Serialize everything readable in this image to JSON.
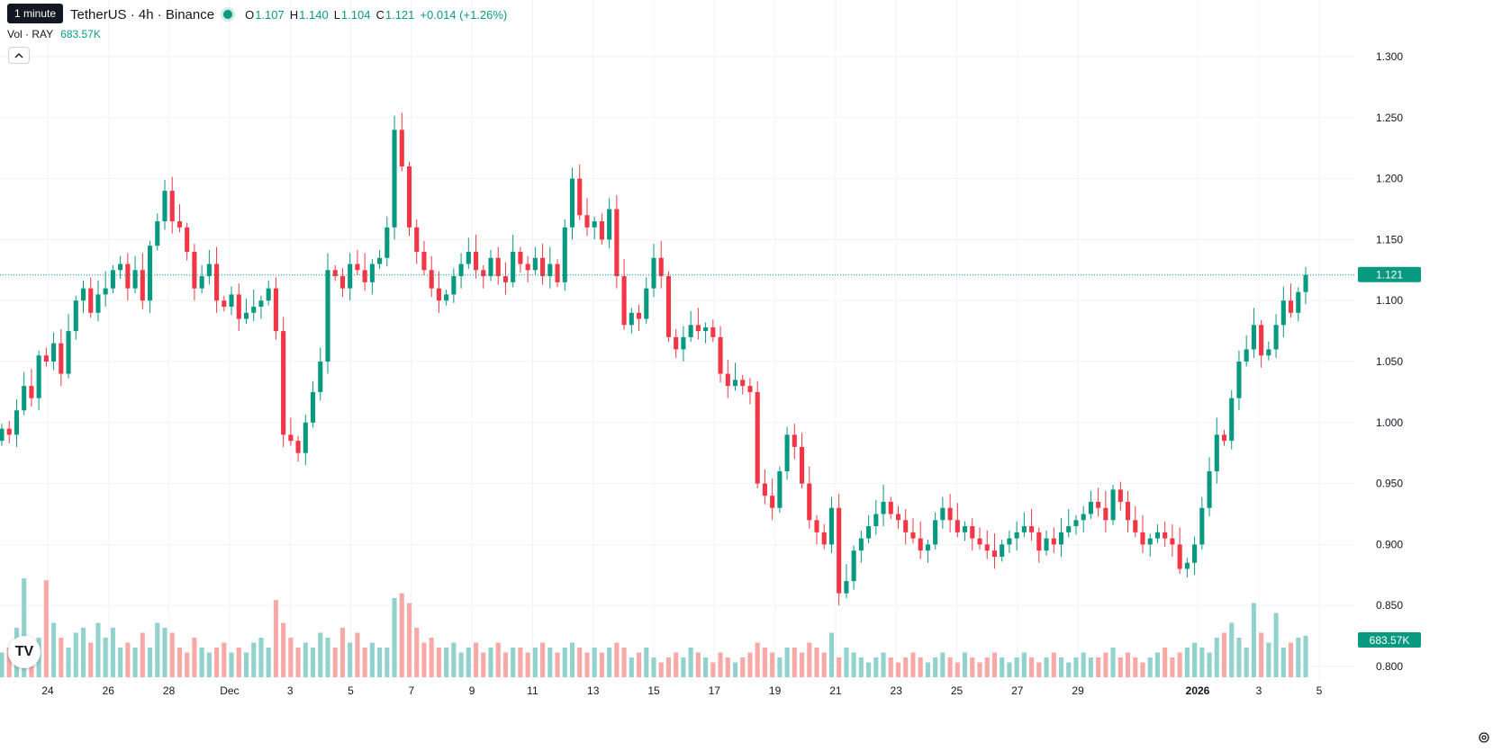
{
  "header": {
    "symbol": "TetherUS · 4h · Binance",
    "tooltip": "1 minute",
    "o_label": "O",
    "o_value": "1.107",
    "h_label": "H",
    "h_value": "1.140",
    "l_label": "L",
    "l_value": "1.104",
    "c_label": "C",
    "c_value": "1.121",
    "change": "+0.014 (+1.26%)",
    "vol_label": "Vol · RAY",
    "vol_value": "683.57K"
  },
  "logo_text": "TV",
  "icons": {
    "collapse": "chevron-up-icon",
    "settings": "gear-icon",
    "logo": "tradingview-logo-icon"
  },
  "colors": {
    "up": "#089981",
    "down": "#f23645",
    "up_vol": "#92d2cc",
    "down_vol": "#f7a9a7",
    "grid": "#f0f3fa"
  },
  "chart_data": {
    "type": "candlestick",
    "ylim": [
      0.79,
      1.31
    ],
    "y_ticks": [
      "1.300",
      "1.250",
      "1.200",
      "1.150",
      "1.100",
      "1.050",
      "1.000",
      "0.950",
      "0.900",
      "0.850",
      "0.800"
    ],
    "x_ticks": [
      "24",
      "26",
      "28",
      "Dec",
      "3",
      "5",
      "7",
      "9",
      "11",
      "13",
      "15",
      "17",
      "19",
      "21",
      "23",
      "25",
      "27",
      "29",
      "2026",
      "3",
      "5"
    ],
    "last_price": "1.121",
    "last_volume": "683.57K",
    "closes": [
      0.995,
      0.99,
      1.01,
      1.03,
      1.02,
      1.055,
      1.05,
      1.065,
      1.04,
      1.075,
      1.1,
      1.11,
      1.09,
      1.105,
      1.11,
      1.125,
      1.13,
      1.11,
      1.125,
      1.1,
      1.145,
      1.165,
      1.19,
      1.165,
      1.16,
      1.14,
      1.11,
      1.12,
      1.13,
      1.1,
      1.095,
      1.105,
      1.085,
      1.09,
      1.095,
      1.1,
      1.11,
      1.075,
      0.99,
      0.985,
      0.975,
      1.0,
      1.025,
      1.05,
      1.125,
      1.12,
      1.11,
      1.13,
      1.125,
      1.115,
      1.13,
      1.135,
      1.16,
      1.24,
      1.21,
      1.16,
      1.14,
      1.125,
      1.11,
      1.1,
      1.105,
      1.12,
      1.13,
      1.14,
      1.125,
      1.12,
      1.135,
      1.12,
      1.115,
      1.14,
      1.13,
      1.125,
      1.135,
      1.12,
      1.13,
      1.115,
      1.16,
      1.2,
      1.17,
      1.16,
      1.165,
      1.15,
      1.175,
      1.12,
      1.08,
      1.09,
      1.085,
      1.11,
      1.135,
      1.12,
      1.07,
      1.06,
      1.07,
      1.08,
      1.075,
      1.078,
      1.07,
      1.04,
      1.03,
      1.035,
      1.03,
      1.025,
      0.95,
      0.94,
      0.93,
      0.96,
      0.99,
      0.98,
      0.95,
      0.92,
      0.91,
      0.9,
      0.93,
      0.86,
      0.87,
      0.895,
      0.905,
      0.915,
      0.925,
      0.935,
      0.925,
      0.92,
      0.91,
      0.905,
      0.895,
      0.9,
      0.92,
      0.93,
      0.92,
      0.91,
      0.915,
      0.905,
      0.9,
      0.895,
      0.89,
      0.9,
      0.905,
      0.91,
      0.915,
      0.91,
      0.895,
      0.905,
      0.9,
      0.91,
      0.915,
      0.92,
      0.925,
      0.935,
      0.93,
      0.92,
      0.945,
      0.935,
      0.92,
      0.91,
      0.9,
      0.905,
      0.91,
      0.905,
      0.9,
      0.88,
      0.885,
      0.9,
      0.93,
      0.96,
      0.99,
      0.985,
      1.02,
      1.05,
      1.06,
      1.08,
      1.055,
      1.06,
      1.08,
      1.1,
      1.09,
      1.107,
      1.121
    ],
    "volume_levels": [
      0.25,
      0.3,
      0.5,
      1.0,
      0.35,
      0.4,
      0.98,
      0.55,
      0.4,
      0.3,
      0.45,
      0.5,
      0.35,
      0.55,
      0.4,
      0.5,
      0.3,
      0.35,
      0.3,
      0.45,
      0.3,
      0.55,
      0.5,
      0.45,
      0.3,
      0.25,
      0.4,
      0.3,
      0.25,
      0.3,
      0.35,
      0.25,
      0.3,
      0.25,
      0.35,
      0.4,
      0.3,
      0.78,
      0.55,
      0.4,
      0.3,
      0.35,
      0.3,
      0.45,
      0.4,
      0.3,
      0.5,
      0.35,
      0.45,
      0.3,
      0.35,
      0.3,
      0.3,
      0.8,
      0.85,
      0.75,
      0.5,
      0.35,
      0.4,
      0.3,
      0.3,
      0.35,
      0.25,
      0.3,
      0.35,
      0.25,
      0.3,
      0.35,
      0.25,
      0.3,
      0.3,
      0.25,
      0.3,
      0.35,
      0.3,
      0.25,
      0.3,
      0.35,
      0.3,
      0.25,
      0.3,
      0.25,
      0.3,
      0.35,
      0.3,
      0.2,
      0.25,
      0.3,
      0.2,
      0.15,
      0.2,
      0.25,
      0.2,
      0.3,
      0.25,
      0.2,
      0.15,
      0.25,
      0.2,
      0.15,
      0.2,
      0.25,
      0.35,
      0.3,
      0.25,
      0.2,
      0.3,
      0.3,
      0.25,
      0.35,
      0.3,
      0.25,
      0.45,
      0.2,
      0.3,
      0.25,
      0.2,
      0.15,
      0.2,
      0.25,
      0.2,
      0.15,
      0.2,
      0.25,
      0.2,
      0.15,
      0.2,
      0.25,
      0.2,
      0.15,
      0.25,
      0.2,
      0.15,
      0.2,
      0.25,
      0.2,
      0.15,
      0.2,
      0.25,
      0.2,
      0.15,
      0.2,
      0.25,
      0.2,
      0.15,
      0.2,
      0.25,
      0.2,
      0.2,
      0.25,
      0.3,
      0.2,
      0.25,
      0.2,
      0.15,
      0.2,
      0.25,
      0.3,
      0.2,
      0.25,
      0.3,
      0.35,
      0.3,
      0.25,
      0.4,
      0.45,
      0.55,
      0.4,
      0.3,
      0.75,
      0.45,
      0.35,
      0.65,
      0.3,
      0.35,
      0.4,
      0.42
    ]
  }
}
